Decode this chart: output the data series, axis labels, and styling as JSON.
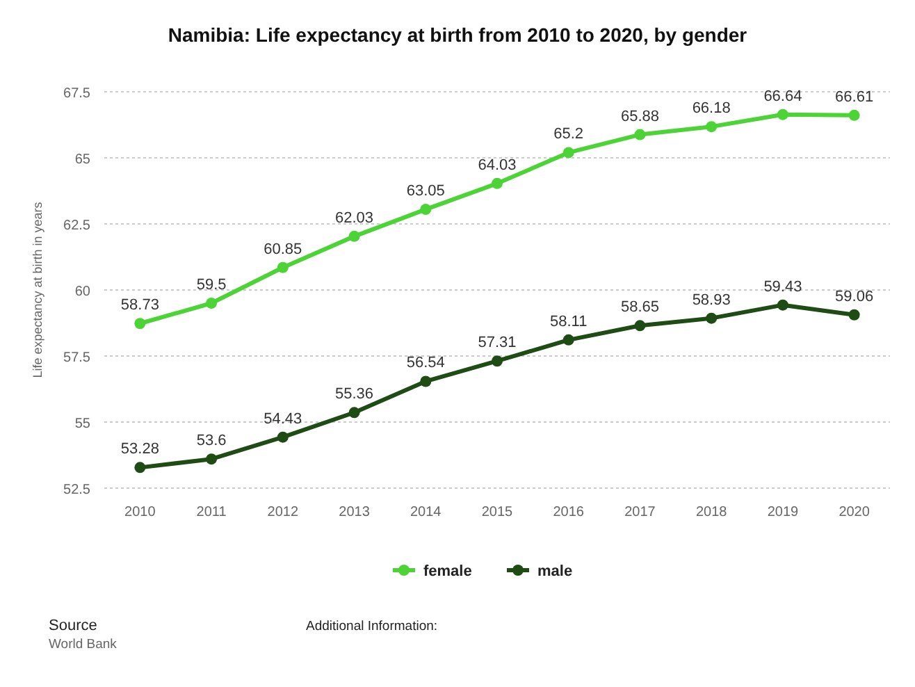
{
  "chart_data": {
    "type": "line",
    "title": "Namibia: Life expectancy at birth from 2010 to 2020, by gender",
    "ylabel": "Life expectancy at birth in years",
    "categories": [
      "2010",
      "2011",
      "2012",
      "2013",
      "2014",
      "2015",
      "2016",
      "2017",
      "2018",
      "2019",
      "2020"
    ],
    "series": [
      {
        "name": "female",
        "color": "#4cd336",
        "values": [
          58.73,
          59.5,
          60.85,
          62.03,
          63.05,
          64.03,
          65.2,
          65.88,
          66.18,
          66.64,
          66.61
        ]
      },
      {
        "name": "male",
        "color": "#1f4b14",
        "values": [
          53.28,
          53.6,
          54.43,
          55.36,
          56.54,
          57.31,
          58.11,
          58.65,
          58.93,
          59.43,
          59.06
        ]
      }
    ],
    "ylim": [
      52.5,
      67.5
    ],
    "yticks": [
      52.5,
      55,
      57.5,
      60,
      62.5,
      65,
      67.5
    ],
    "grid": "y",
    "legend": "bottom",
    "marker": "circle",
    "line_style": "solid",
    "data_labels": true,
    "annotations": [
      "Source",
      "World Bank",
      "Additional Information:"
    ]
  }
}
